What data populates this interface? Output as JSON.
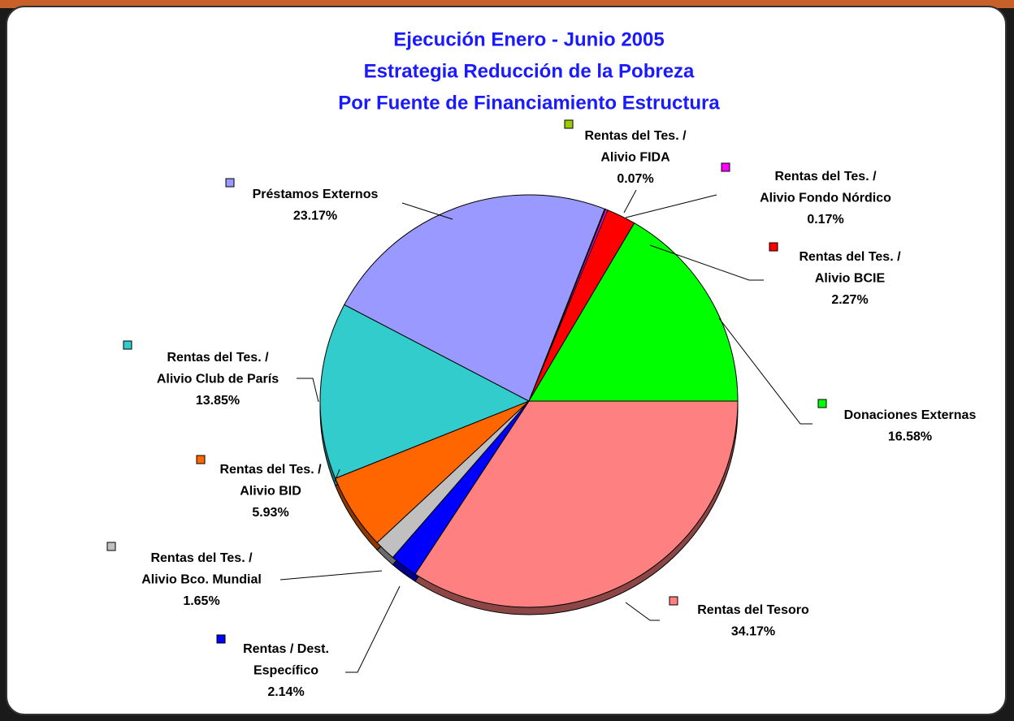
{
  "chart_data": {
    "type": "pie",
    "title": [
      "Ejecución  Enero - Junio 2005",
      "Estrategia Reducción de la Pobreza",
      "Por Fuente de Financiamiento Estructura"
    ],
    "categories": [
      [
        "Rentas del Tesoro"
      ],
      [
        "Rentas / Dest.",
        "Específico"
      ],
      [
        "Rentas del Tes. /",
        "Alivio Bco. Mundial"
      ],
      [
        "Rentas del Tes. /",
        "Alivio BID"
      ],
      [
        "Rentas del Tes. /",
        "Alivio Club de París"
      ],
      [
        "Préstamos Externos"
      ],
      [
        "Rentas del Tes. /",
        "Alivio FIDA"
      ],
      [
        "Rentas del Tes. /",
        "Alivio Fondo Nórdico"
      ],
      [
        "Rentas del Tes. /",
        "Alivio BCIE"
      ],
      [
        "Donaciones Externas"
      ]
    ],
    "values": [
      34.17,
      2.14,
      1.65,
      5.93,
      13.85,
      23.17,
      0.07,
      0.17,
      2.27,
      16.58
    ],
    "value_labels": [
      "34.17%",
      "2.14%",
      "1.65%",
      "5.93%",
      "13.85%",
      "23.17%",
      "0.07%",
      "0.17%",
      "2.27%",
      "16.58%"
    ],
    "colors": [
      "#ff8080",
      "#0000ff",
      "#c0c0c0",
      "#ff6600",
      "#33cccc",
      "#9999ff",
      "#99cc00",
      "#ff00ff",
      "#ff0000",
      "#00ff00"
    ]
  }
}
